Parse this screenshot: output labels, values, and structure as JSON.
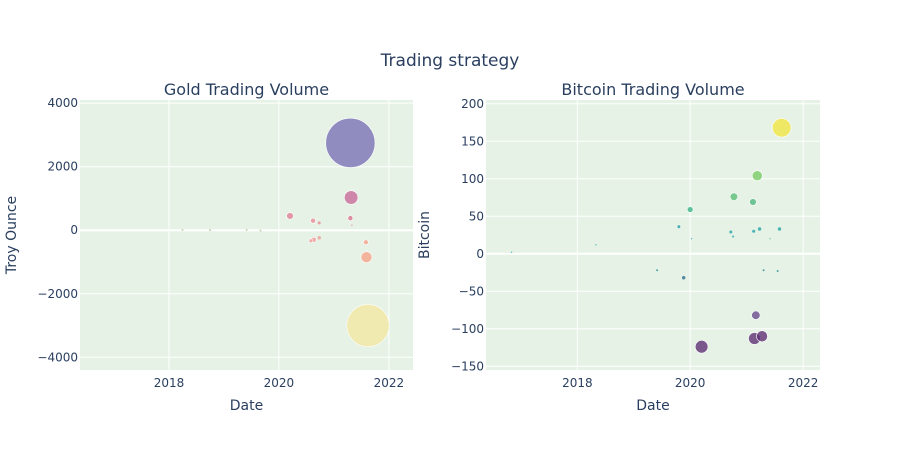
{
  "title": "Trading strategy",
  "chart_data": [
    {
      "type": "scatter",
      "subtitle": "Gold Trading Volume",
      "xlabel": "Date",
      "ylabel": "Troy Ounce",
      "xlim": [
        "2016-05-20",
        "2022-06-10"
      ],
      "ylim": [
        -4400,
        4100
      ],
      "xticks": [
        "2018",
        "2020",
        "2022"
      ],
      "yticks": [
        -4000,
        -2000,
        0,
        2000,
        4000
      ],
      "points": [
        {
          "x": "2018-04-01",
          "y": 8,
          "size": 1.2,
          "color": "#c8bfa6"
        },
        {
          "x": "2018-10-01",
          "y": 5,
          "size": 1.2,
          "color": "#c8bfa6"
        },
        {
          "x": "2019-06-01",
          "y": 10,
          "size": 1.2,
          "color": "#c8bfa6"
        },
        {
          "x": "2019-09-01",
          "y": -10,
          "size": 1.2,
          "color": "#c8bfa6"
        },
        {
          "x": "2020-03-15",
          "y": 450,
          "size": 4,
          "color": "#e07f95"
        },
        {
          "x": "2020-08-15",
          "y": 300,
          "size": 3,
          "color": "#e98a96"
        },
        {
          "x": "2020-09-25",
          "y": 230,
          "size": 1.8,
          "color": "#e98a96"
        },
        {
          "x": "2020-08-20",
          "y": -300,
          "size": 3,
          "color": "#f09a96"
        },
        {
          "x": "2020-08-01",
          "y": -330,
          "size": 2.3,
          "color": "#f09a96"
        },
        {
          "x": "2020-09-25",
          "y": -240,
          "size": 2,
          "color": "#f09a96"
        },
        {
          "x": "2021-04-20",
          "y": 2750,
          "size": 29,
          "color": "#7b72b6"
        },
        {
          "x": "2021-04-25",
          "y": 1030,
          "size": 8,
          "color": "#c86a9a"
        },
        {
          "x": "2021-04-20",
          "y": 380,
          "size": 3,
          "color": "#d97391"
        },
        {
          "x": "2021-08-01",
          "y": -380,
          "size": 3,
          "color": "#f3a58f"
        },
        {
          "x": "2021-08-05",
          "y": -850,
          "size": 6.5,
          "color": "#f6a48c"
        },
        {
          "x": "2021-08-15",
          "y": -3000,
          "size": 25,
          "color": "#f2e6a3"
        },
        {
          "x": "2021-04-30",
          "y": 160,
          "size": 0.8,
          "color": "#e07f95"
        }
      ]
    },
    {
      "type": "scatter",
      "subtitle": "Bitcoin Trading Volume",
      "xlabel": "Date",
      "ylabel": "Bitcoin",
      "xlim": [
        "2016-05-20",
        "2022-04-20"
      ],
      "ylim": [
        -155,
        205
      ],
      "xticks": [
        "2018",
        "2020",
        "2022"
      ],
      "yticks": [
        -150,
        -100,
        -50,
        0,
        50,
        100,
        150,
        200
      ],
      "points": [
        {
          "x": "2016-11-01",
          "y": 2,
          "size": 0.8,
          "color": "#26a7a4"
        },
        {
          "x": "2018-05-01",
          "y": 12,
          "size": 0.8,
          "color": "#26a7a4"
        },
        {
          "x": "2019-06-01",
          "y": -22,
          "size": 1.2,
          "color": "#2b8c95"
        },
        {
          "x": "2019-10-20",
          "y": 36,
          "size": 2.2,
          "color": "#27a0a6"
        },
        {
          "x": "2019-11-20",
          "y": -32,
          "size": 2,
          "color": "#2e6d8f"
        },
        {
          "x": "2020-01-01",
          "y": 59,
          "size": 3.5,
          "color": "#3cb48a"
        },
        {
          "x": "2020-01-10",
          "y": 20,
          "size": 0.8,
          "color": "#26a7a4"
        },
        {
          "x": "2020-03-15",
          "y": -124,
          "size": 7.5,
          "color": "#5f3175"
        },
        {
          "x": "2020-09-20",
          "y": 29,
          "size": 1.8,
          "color": "#22a4a7"
        },
        {
          "x": "2020-10-05",
          "y": 23,
          "size": 1.2,
          "color": "#22a4a7"
        },
        {
          "x": "2020-10-10",
          "y": 76,
          "size": 4.5,
          "color": "#5bbe78"
        },
        {
          "x": "2021-02-10",
          "y": 69,
          "size": 4,
          "color": "#4fb67f"
        },
        {
          "x": "2021-02-15",
          "y": 30,
          "size": 1.8,
          "color": "#22a4a7"
        },
        {
          "x": "2021-02-20",
          "y": -113,
          "size": 7,
          "color": "#5f3175"
        },
        {
          "x": "2021-03-10",
          "y": 104,
          "size": 6,
          "color": "#7bcb67"
        },
        {
          "x": "2021-03-01",
          "y": -82,
          "size": 5,
          "color": "#6a4b8e"
        },
        {
          "x": "2021-03-25",
          "y": 33,
          "size": 2,
          "color": "#22a4a7"
        },
        {
          "x": "2021-04-10",
          "y": -110,
          "size": 6.5,
          "color": "#5f3175"
        },
        {
          "x": "2021-04-20",
          "y": -22,
          "size": 1.2,
          "color": "#2b8c95"
        },
        {
          "x": "2021-06-01",
          "y": 20,
          "size": 0.8,
          "color": "#3cb48a"
        },
        {
          "x": "2021-07-20",
          "y": -23,
          "size": 1.2,
          "color": "#2b8c95"
        },
        {
          "x": "2021-08-01",
          "y": 33,
          "size": 2,
          "color": "#22a4a7"
        },
        {
          "x": "2021-08-15",
          "y": 168,
          "size": 11,
          "color": "#f1e544"
        }
      ]
    }
  ]
}
